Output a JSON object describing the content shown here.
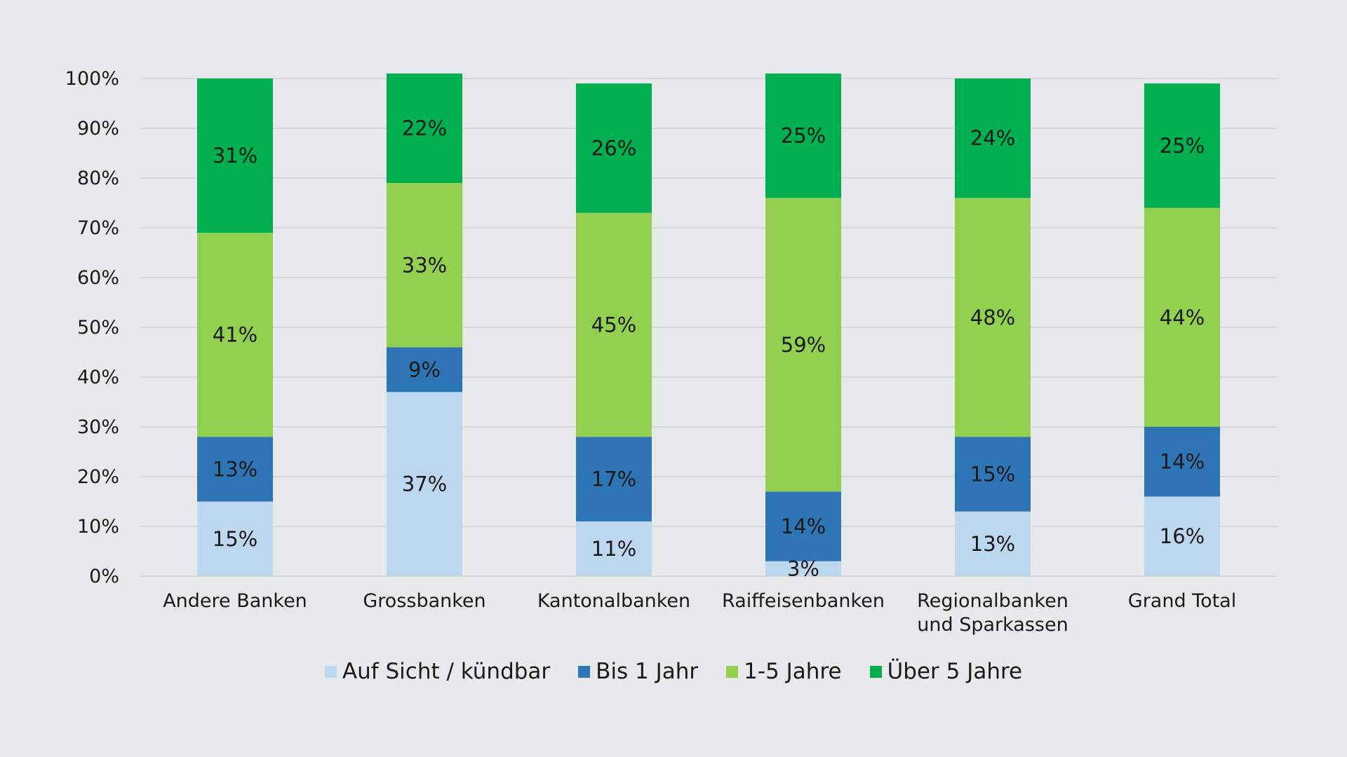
{
  "chart_data": {
    "type": "bar",
    "stacked": true,
    "categories": [
      [
        "Andere Banken"
      ],
      [
        "Grossbanken"
      ],
      [
        "Kantonalbanken"
      ],
      [
        "Raiffeisenbanken"
      ],
      [
        "Regionalbanken",
        "und Sparkassen"
      ],
      [
        "Grand Total"
      ]
    ],
    "series": [
      {
        "name": "Auf Sicht / kündbar",
        "color": "#bdd7ee",
        "values": [
          15,
          37,
          11,
          3,
          13,
          16
        ]
      },
      {
        "name": "Bis 1 Jahr",
        "color": "#2e75b6",
        "values": [
          13,
          9,
          17,
          14,
          15,
          14
        ]
      },
      {
        "name": "1-5 Jahre",
        "color": "#92d050",
        "values": [
          41,
          33,
          45,
          59,
          48,
          44
        ]
      },
      {
        "name": "Über 5 Jahre",
        "color": "#00b050",
        "values": [
          31,
          22,
          26,
          25,
          24,
          25
        ]
      }
    ],
    "data_labels": [
      [
        "15%",
        "37%",
        "11%",
        "3%",
        "13%",
        "16%"
      ],
      [
        "13%",
        "9%",
        "17%",
        "14%",
        "15%",
        "14%"
      ],
      [
        "41%",
        "33%",
        "45%",
        "59%",
        "48%",
        "44%"
      ],
      [
        "31%",
        "22%",
        "26%",
        "25%",
        "24%",
        "25%"
      ]
    ],
    "y_ticks": [
      "0%",
      "10%",
      "20%",
      "30%",
      "40%",
      "50%",
      "60%",
      "70%",
      "80%",
      "90%",
      "100%"
    ],
    "ylim": [
      0,
      100
    ],
    "grid": true,
    "legend_position": "bottom",
    "title": "",
    "xlabel": "",
    "ylabel": ""
  }
}
